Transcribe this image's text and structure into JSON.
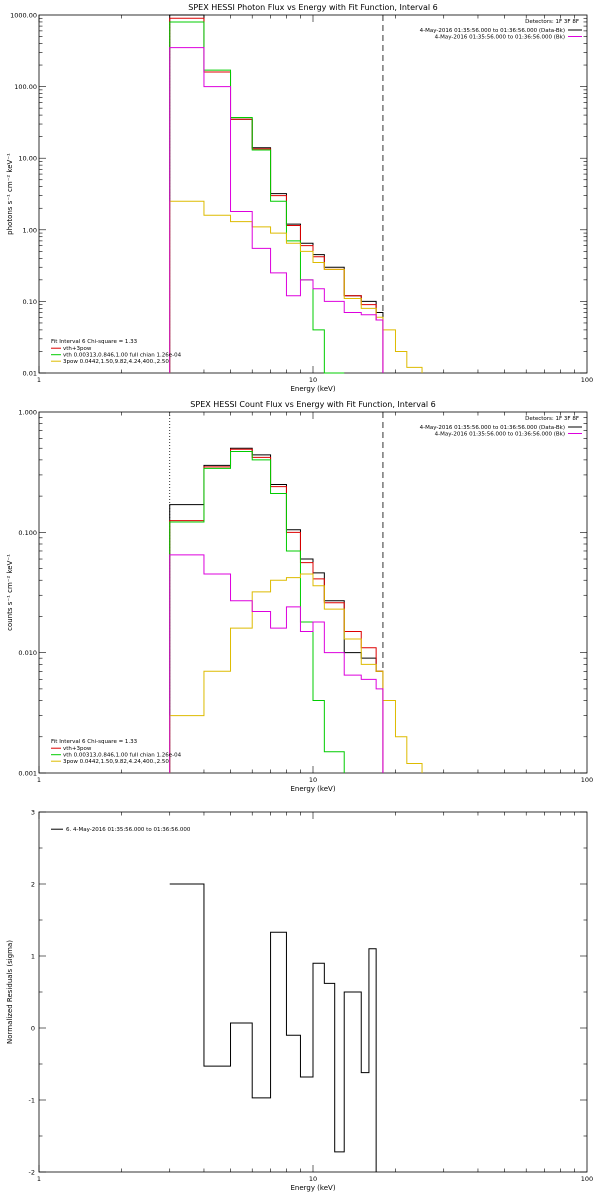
{
  "chart_data": [
    {
      "type": "line",
      "title": "SPEX HESSI Photon Flux vs Energy with Fit Function, Interval 6",
      "xlabel": "Energy (keV)",
      "ylabel": "photons s⁻¹ cm⁻² keV⁻¹",
      "xscale": "log",
      "yscale": "log",
      "xlim": [
        1,
        100
      ],
      "ylim": [
        0.01,
        1000
      ],
      "x_ticks": [
        "1",
        "10",
        "100"
      ],
      "y_ticks": [
        "0.01",
        "0.10",
        "1.00",
        "10.00",
        "100.00",
        "1000.00"
      ],
      "detectors": "Detectors: 1F 3F 8F",
      "time_lines": [
        {
          "label": "4-May-2016 01:35:56.000 to 01:36:56.000 (Data-Bk)",
          "color": "#000000"
        },
        {
          "label": "4-May-2016 01:35:56.000 to 01:36:56.000 (Bk)",
          "color": "#dd00dd"
        }
      ],
      "fit_text": "Fit Interval 6   Chi-square = 1.33",
      "legend": [
        {
          "label": "vth+3pow",
          "color": "#dd0000"
        },
        {
          "label": "vth 0.00313,0.846,1.00   full chian 1.26e-04",
          "color": "#00cc00"
        },
        {
          "label": "3pow 0.0442,1.50,9.82,4.24,400.,2.50",
          "color": "#ddbb00"
        }
      ],
      "bin_edges": [
        3,
        4,
        5,
        6,
        7,
        8,
        9,
        10,
        11,
        13,
        15,
        17,
        18,
        20,
        22,
        25
      ],
      "series": [
        {
          "name": "Data-Bk",
          "color": "#000000",
          "values": [
            1000,
            160,
            35,
            14,
            3.2,
            1.2,
            0.65,
            0.45,
            0.3,
            0.12,
            0.1,
            0.07
          ]
        },
        {
          "name": "vth+3pow",
          "color": "#dd0000",
          "values": [
            900,
            160,
            35,
            13.5,
            3.0,
            1.15,
            0.6,
            0.42,
            0.28,
            0.12,
            0.09,
            0.055
          ]
        },
        {
          "name": "vth",
          "color": "#00cc00",
          "values": [
            800,
            170,
            37,
            13,
            2.5,
            0.7,
            0.2,
            0.04,
            0.01
          ]
        },
        {
          "name": "3pow",
          "color": "#ddbb00",
          "values": [
            2.5,
            1.6,
            1.3,
            1.1,
            0.9,
            0.65,
            0.5,
            0.35,
            0.28,
            0.11,
            0.08,
            0.06,
            0.04,
            0.02,
            0.012
          ]
        },
        {
          "name": "Bk",
          "color": "#dd00dd",
          "values": [
            350,
            100,
            1.8,
            0.55,
            0.25,
            0.12,
            0.2,
            0.15,
            0.1,
            0.07,
            0.065,
            0.055
          ]
        }
      ],
      "vlines": [
        {
          "x": 3,
          "style": "dotted"
        },
        {
          "x": 18,
          "style": "dashed"
        }
      ]
    },
    {
      "type": "line",
      "title": "SPEX HESSI Count Flux vs Energy with Fit Function, Interval 6",
      "xlabel": "Energy (keV)",
      "ylabel": "counts s⁻¹ cm⁻² keV⁻¹",
      "xscale": "log",
      "yscale": "log",
      "xlim": [
        1,
        100
      ],
      "ylim": [
        0.001,
        1
      ],
      "x_ticks": [
        "1",
        "10",
        "100"
      ],
      "y_ticks": [
        "0.001",
        "0.010",
        "0.100",
        "1.000"
      ],
      "detectors": "Detectors: 1F 3F 8F",
      "time_lines": [
        {
          "label": "4-May-2016 01:35:56.000 to 01:36:56.000 (Data-Bk)",
          "color": "#000000"
        },
        {
          "label": "4-May-2016 01:35:56.000 to 01:36:56.000 (Bk)",
          "color": "#dd00dd"
        }
      ],
      "fit_text": "Fit Interval 6   Chi-square = 1.33",
      "legend": [
        {
          "label": "vth+3pow",
          "color": "#dd0000"
        },
        {
          "label": "vth 0.00313,0.846,1.00   full chian 1.26e-04",
          "color": "#00cc00"
        },
        {
          "label": "3pow 0.0442,1.50,9.82,4.24,400.,2.50",
          "color": "#ddbb00"
        }
      ],
      "bin_edges": [
        3,
        4,
        5,
        6,
        7,
        8,
        9,
        10,
        11,
        13,
        15,
        17,
        18,
        20,
        22,
        25
      ],
      "series": [
        {
          "name": "Data-Bk",
          "color": "#000000",
          "values": [
            0.17,
            0.36,
            0.5,
            0.44,
            0.25,
            0.105,
            0.06,
            0.046,
            0.027,
            0.01,
            0.009,
            0.007
          ]
        },
        {
          "name": "vth+3pow",
          "color": "#dd0000",
          "values": [
            0.125,
            0.35,
            0.49,
            0.42,
            0.24,
            0.1,
            0.056,
            0.041,
            0.026,
            0.015,
            0.011,
            0.007
          ]
        },
        {
          "name": "vth",
          "color": "#00cc00",
          "values": [
            0.122,
            0.34,
            0.47,
            0.4,
            0.21,
            0.07,
            0.018,
            0.004,
            0.0015
          ]
        },
        {
          "name": "3pow",
          "color": "#ddbb00",
          "values": [
            0.003,
            0.007,
            0.016,
            0.032,
            0.04,
            0.042,
            0.045,
            0.036,
            0.023,
            0.013,
            0.008,
            0.007,
            0.004,
            0.002,
            0.0012
          ]
        },
        {
          "name": "Bk",
          "color": "#dd00dd",
          "values": [
            0.065,
            0.045,
            0.027,
            0.022,
            0.016,
            0.024,
            0.015,
            0.018,
            0.01,
            0.0065,
            0.006,
            0.005
          ]
        }
      ],
      "vlines": [
        {
          "x": 3,
          "style": "dotted"
        },
        {
          "x": 18,
          "style": "dashed"
        }
      ]
    },
    {
      "type": "line",
      "title": "",
      "xlabel": "Energy (keV)",
      "ylabel": "Normalized Residuals (sigma)",
      "xscale": "log",
      "yscale": "linear",
      "xlim": [
        1,
        100
      ],
      "ylim": [
        -2,
        3
      ],
      "x_ticks": [
        "1",
        "10",
        "100"
      ],
      "y_ticks": [
        "-2",
        "-1",
        "0",
        "1",
        "2",
        "3"
      ],
      "legend": [
        {
          "label": "6.  4-May-2016 01:35:56.000 to 01:36:56.000",
          "color": "#000000"
        }
      ],
      "bin_edges": [
        3,
        4,
        5,
        6,
        7,
        8,
        9,
        10,
        11,
        12,
        13,
        15,
        16,
        17,
        18
      ],
      "series": [
        {
          "name": "residuals",
          "color": "#000000",
          "values": [
            2.0,
            -0.53,
            0.07,
            -0.97,
            1.33,
            -0.1,
            -0.68,
            0.9,
            0.62,
            -1.72,
            0.5,
            -0.62,
            1.1
          ]
        }
      ]
    }
  ]
}
